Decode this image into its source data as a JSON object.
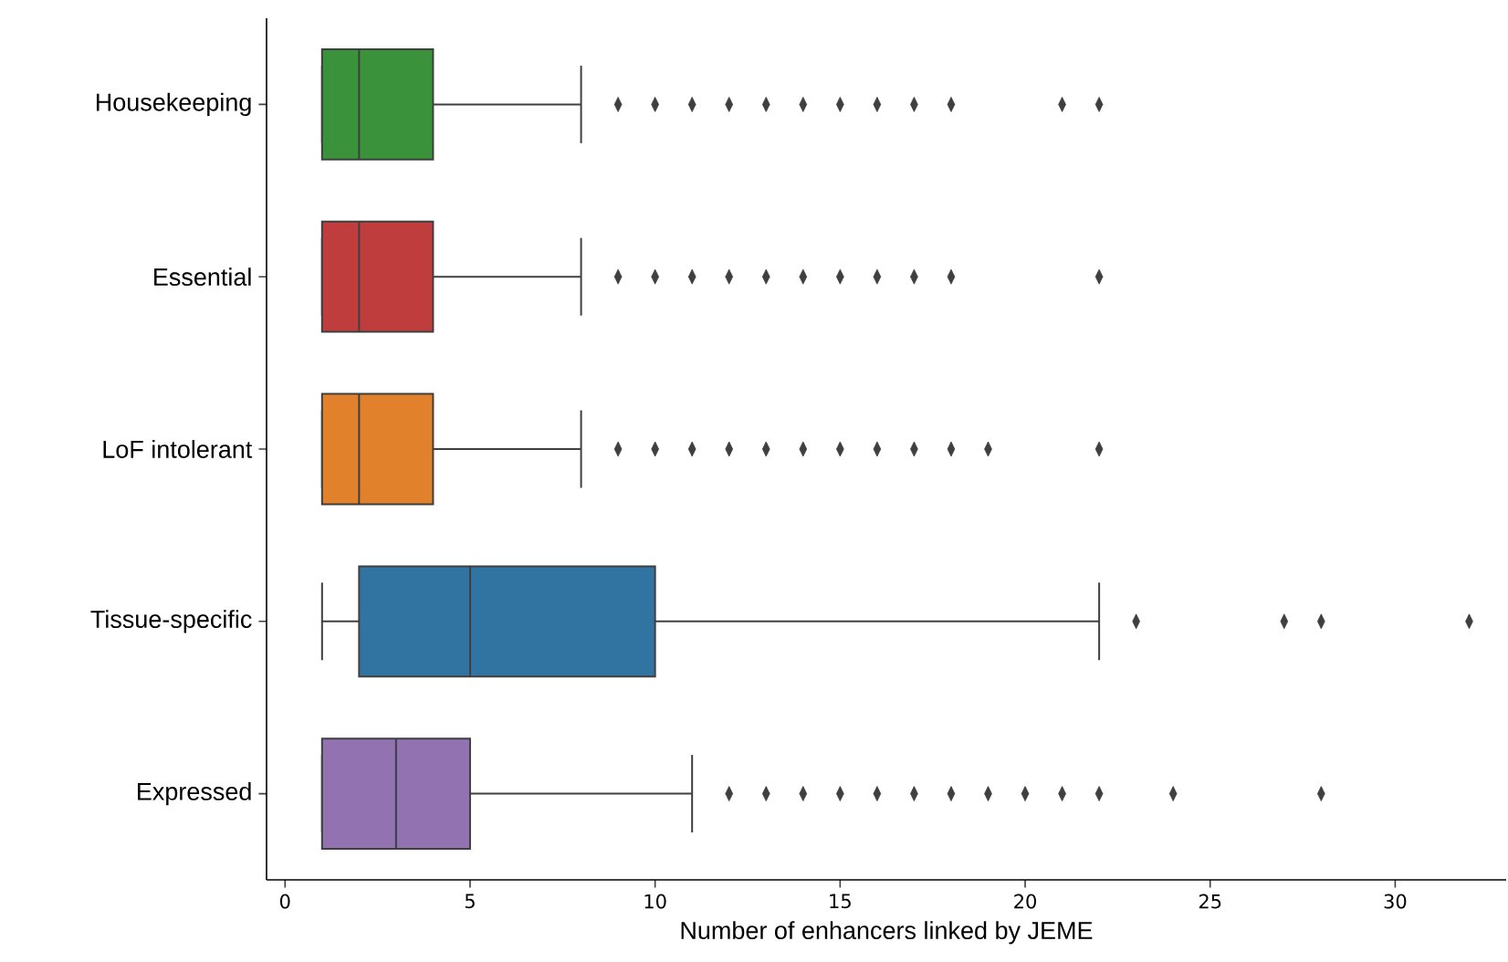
{
  "chart_data": {
    "type": "box",
    "orientation": "horizontal",
    "categories": [
      "Housekeeping",
      "Essential",
      "LoF intolerant",
      "Tissue-specific",
      "Expressed"
    ],
    "colors": [
      "#3a923a",
      "#c03d3e",
      "#e1812c",
      "#3274a1",
      "#9372b2"
    ],
    "boxes": [
      {
        "low": 1,
        "q1": 1,
        "median": 2,
        "q3": 4,
        "high": 8,
        "outliers": [
          9,
          10,
          11,
          12,
          13,
          14,
          15,
          16,
          17,
          18,
          21,
          22
        ]
      },
      {
        "low": 1,
        "q1": 1,
        "median": 2,
        "q3": 4,
        "high": 8,
        "outliers": [
          9,
          10,
          11,
          12,
          13,
          14,
          15,
          16,
          17,
          18,
          22
        ]
      },
      {
        "low": 1,
        "q1": 1,
        "median": 2,
        "q3": 4,
        "high": 8,
        "outliers": [
          9,
          10,
          11,
          12,
          13,
          14,
          15,
          16,
          17,
          18,
          19,
          22
        ]
      },
      {
        "low": 1,
        "q1": 2,
        "median": 5,
        "q3": 10,
        "high": 22,
        "outliers": [
          23,
          27,
          28,
          32
        ]
      },
      {
        "low": 1,
        "q1": 1,
        "median": 3,
        "q3": 5,
        "high": 11,
        "outliers": [
          12,
          13,
          14,
          15,
          16,
          17,
          18,
          19,
          20,
          21,
          22,
          24,
          28
        ]
      }
    ],
    "xlabel": "Number of enhancers linked by JEME",
    "xlim": [
      -0.5,
      33
    ],
    "xticks": [
      0,
      5,
      10,
      15,
      20,
      25,
      30
    ],
    "marker": "diamond",
    "grid": false
  }
}
